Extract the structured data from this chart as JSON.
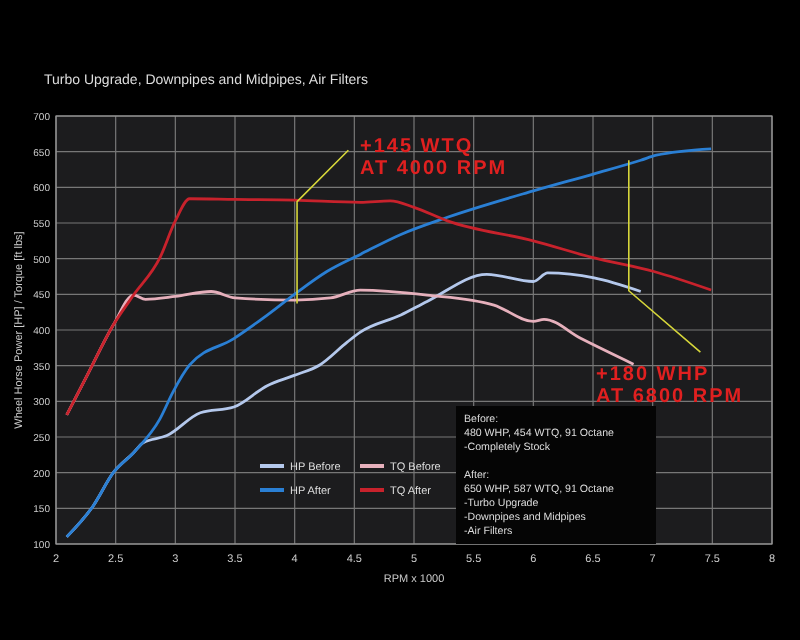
{
  "chart_data": {
    "type": "line",
    "title": "Turbo Upgrade, Downpipes and Midpipes, Air Filters",
    "xlabel": "RPM x 1000",
    "ylabel": "Wheel Horse Power [HP] / Torque [ft lbs]",
    "xlim": [
      2,
      8
    ],
    "xticks": [
      2,
      2.5,
      3,
      3.5,
      4,
      4.5,
      5,
      5.5,
      6,
      6.5,
      7,
      7.5,
      8
    ],
    "ylim": [
      100,
      700
    ],
    "yticks": [
      100,
      150,
      200,
      250,
      300,
      350,
      400,
      450,
      500,
      550,
      600,
      650,
      700
    ],
    "grid": true,
    "legend": "bottom",
    "marker": "none",
    "line_style": "solid",
    "series": [
      {
        "name": "HP Before",
        "color": "#b4c8ec",
        "x": [
          2.09,
          2.31,
          2.48,
          2.65,
          2.73,
          2.93,
          3.21,
          3.49,
          3.77,
          3.99,
          4.21,
          4.44,
          4.55,
          4.89,
          5.11,
          5.61,
          6.0,
          6.12,
          6.51,
          6.9
        ],
        "values": [
          110,
          153,
          200,
          228,
          242,
          252,
          284,
          292,
          322,
          336,
          351,
          383,
          397,
          421,
          440,
          478,
          468,
          480,
          473,
          454
        ]
      },
      {
        "name": "TQ Before",
        "color": "#e6b0bc",
        "x": [
          2.09,
          2.26,
          2.48,
          2.65,
          2.75,
          3.0,
          3.3,
          3.5,
          4.0,
          4.3,
          4.55,
          5.11,
          5.67,
          6.0,
          6.09,
          6.4,
          6.84
        ],
        "values": [
          281,
          336,
          407,
          449,
          443,
          447,
          454,
          445,
          442,
          445,
          456,
          449,
          435,
          412,
          415,
          388,
          352
        ]
      },
      {
        "name": "HP After",
        "color": "#2a7fd4",
        "x": [
          2.09,
          2.31,
          2.48,
          2.65,
          2.87,
          2.98,
          3.12,
          3.49,
          3.77,
          3.99,
          4.27,
          4.55,
          4.89,
          5.28,
          6.0,
          6.51,
          6.9,
          7.03,
          7.49
        ],
        "values": [
          110,
          153,
          200,
          228,
          275,
          313,
          351,
          388,
          421,
          449,
          482,
          506,
          534,
          558,
          595,
          619,
          638,
          645,
          654
        ]
      },
      {
        "name": "TQ After",
        "color": "#c8222c",
        "x": [
          2.09,
          2.26,
          2.48,
          2.65,
          2.87,
          3.0,
          3.12,
          3.5,
          4.0,
          4.55,
          4.8,
          5.0,
          5.28,
          6.0,
          6.51,
          7.01,
          7.49
        ],
        "values": [
          281,
          336,
          407,
          449,
          501,
          553,
          584,
          583,
          582,
          579,
          581,
          572,
          553,
          525,
          501,
          482,
          456
        ]
      },
      {
        "color": "#d6d63a",
        "x": [
          4.45,
          4.02,
          4.02
        ],
        "values": [
          652,
          580,
          437
        ]
      },
      {
        "color": "#d6d63a",
        "x": [
          6.8,
          6.8,
          7.4
        ],
        "values": [
          638,
          455,
          369
        ]
      }
    ],
    "annotations": [
      "+145 WTQ\nAT 4000 RPM",
      "+180 WHP\nAT 6800 RPM",
      "Before:\n480 WHP, 454 WTQ, 91 Octane\n-Completely Stock\n\nAfter:\n650 WHP, 587 WTQ, 91 Octane\n-Turbo Upgrade\n-Downpipes and Midpipes\n-Air Filters"
    ]
  }
}
